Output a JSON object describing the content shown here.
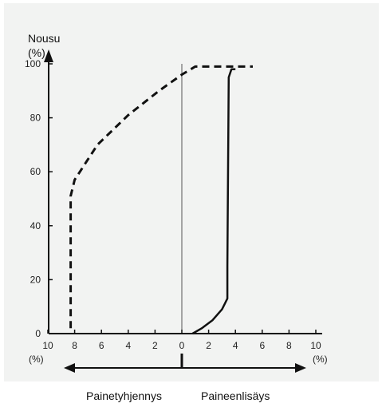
{
  "chart_data": {
    "type": "line",
    "ylabel": "Nousu",
    "ylabel_unit": "(%)",
    "ylim": [
      0,
      100
    ],
    "y_ticks": [
      0,
      20,
      40,
      60,
      80,
      100
    ],
    "x_ticks_left": [
      10,
      8,
      6,
      4,
      2,
      0
    ],
    "x_ticks_right": [
      2,
      4,
      6,
      8,
      10
    ],
    "x_unit_left": "(%)",
    "x_unit_right": "(%)",
    "xlim": [
      -10,
      10
    ],
    "grid": false,
    "series": [
      {
        "name": "Painetyhjennys",
        "style": "dashed",
        "color": "#111111",
        "x": [
          -8.3,
          -8.3,
          -8.0,
          -6.3,
          -4.0,
          -1.7,
          0.0,
          1.0,
          2.5,
          5.3
        ],
        "y": [
          2,
          51,
          57,
          70,
          81,
          90,
          96,
          99,
          99,
          99
        ]
      },
      {
        "name": "Paineenlisäys",
        "style": "solid",
        "color": "#111111",
        "x": [
          0.8,
          1.5,
          2.3,
          3.0,
          3.4,
          3.4,
          3.5,
          3.7,
          4.0
        ],
        "y": [
          0,
          2,
          5,
          9,
          13,
          25,
          95,
          98,
          98
        ]
      }
    ]
  },
  "bottom_labels": {
    "left": "Painetyhjennys",
    "right": "Paineenlisäys"
  }
}
